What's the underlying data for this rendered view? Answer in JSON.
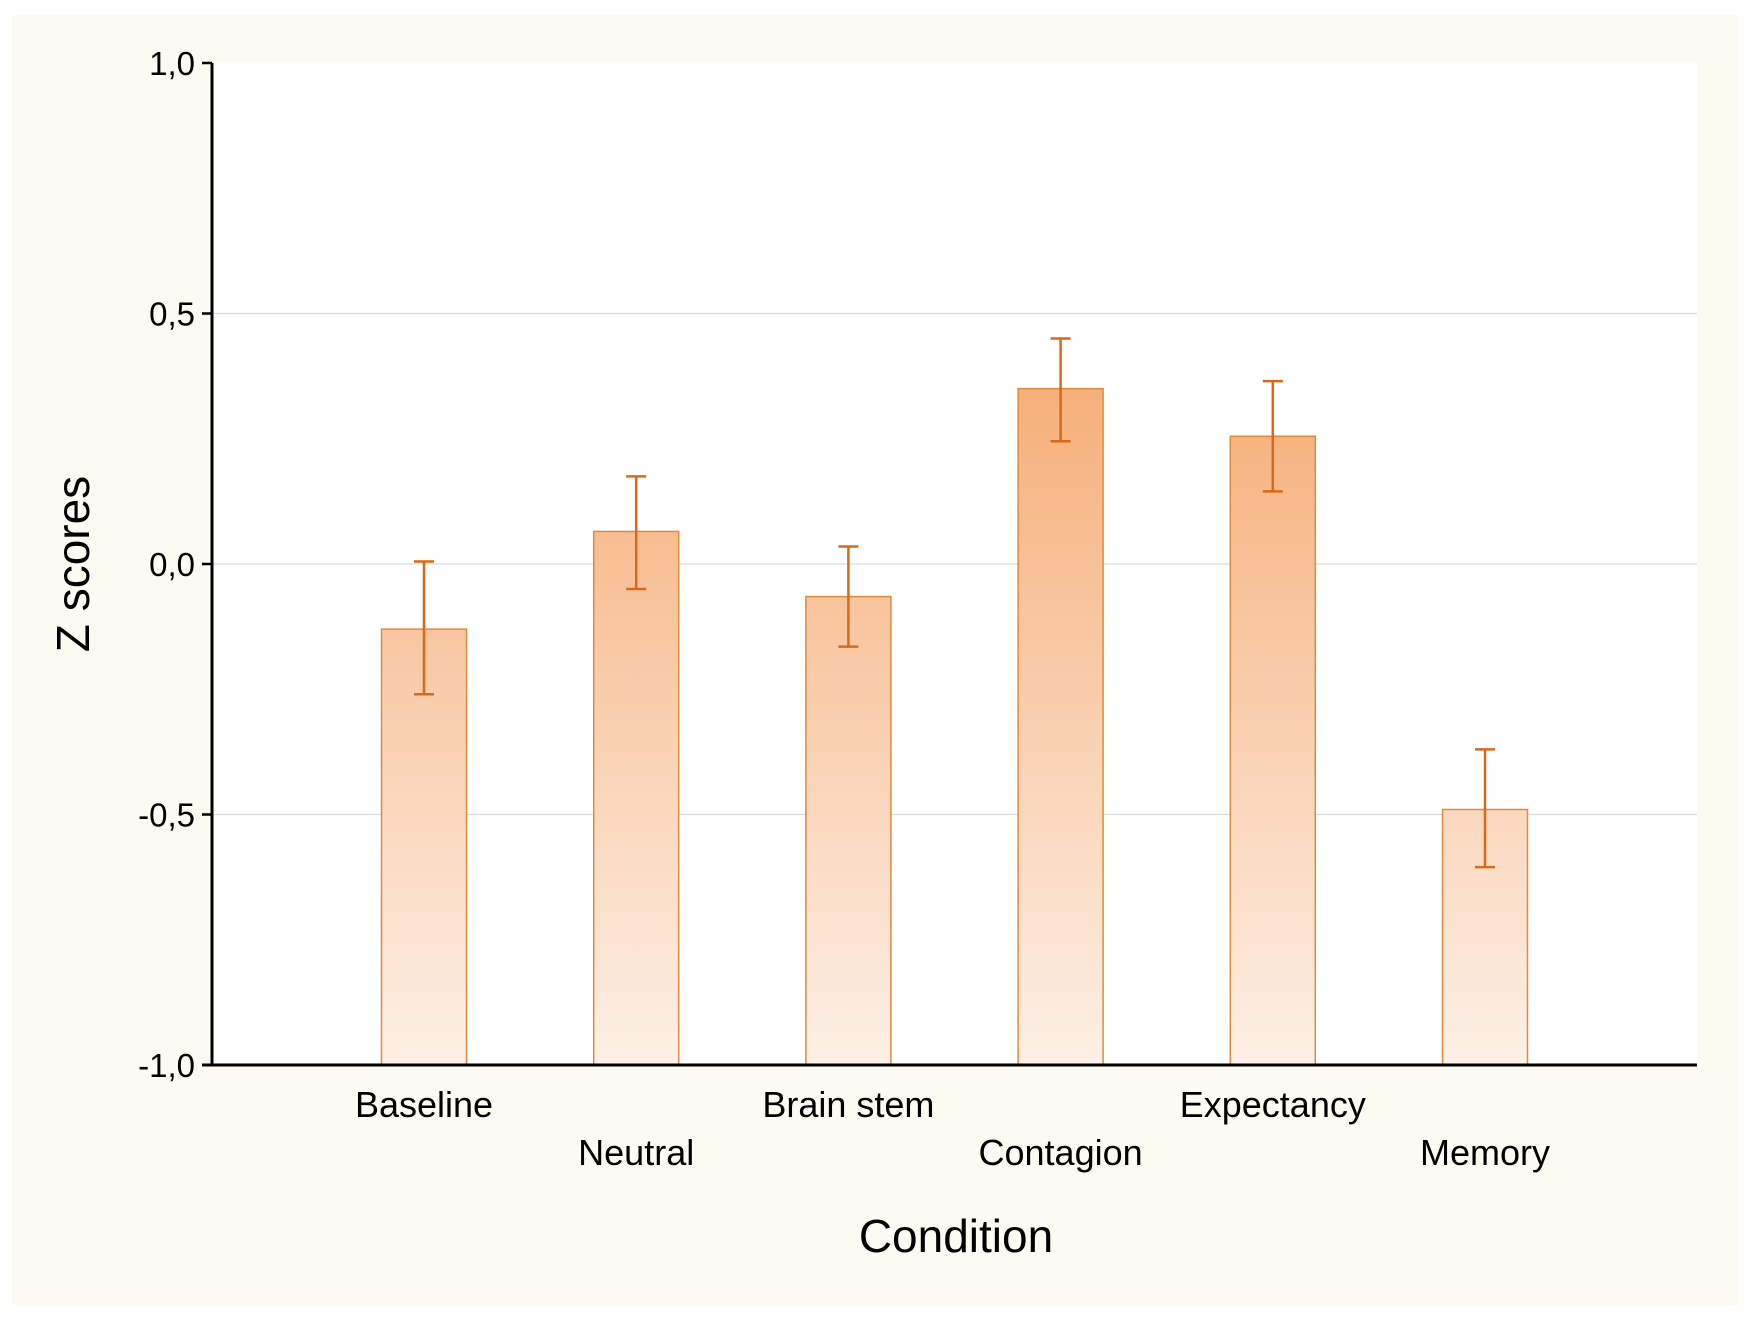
{
  "chart_data": {
    "type": "bar",
    "title": "",
    "xlabel": "Condition",
    "ylabel": "Z scores",
    "ylim": [
      -1.0,
      1.0
    ],
    "yticks": [
      -1.0,
      -0.5,
      0.0,
      0.5,
      1.0
    ],
    "ytick_labels": [
      "-1,0",
      "-0,5",
      "0,0",
      "0,5",
      "1,0"
    ],
    "grid": true,
    "categories": [
      "Baseline",
      "Neutral",
      "Brain stem",
      "Contagion",
      "Expectancy",
      "Memory"
    ],
    "series": [
      {
        "values": [
          -0.13,
          0.065,
          -0.065,
          0.35,
          0.255,
          -0.49
        ],
        "error_low": [
          -0.26,
          -0.05,
          -0.165,
          0.245,
          0.145,
          -0.605
        ],
        "error_high": [
          0.005,
          0.175,
          0.035,
          0.45,
          0.365,
          -0.37
        ]
      }
    ],
    "colors": {
      "bar_edge": "#e08a3c",
      "bar_fill_top": "#f6b07b",
      "bar_fill_bottom": "#fdf0e6",
      "error_bar": "#d9691a",
      "background": "#fdfaf1",
      "plot_area": "#ffffff"
    }
  }
}
